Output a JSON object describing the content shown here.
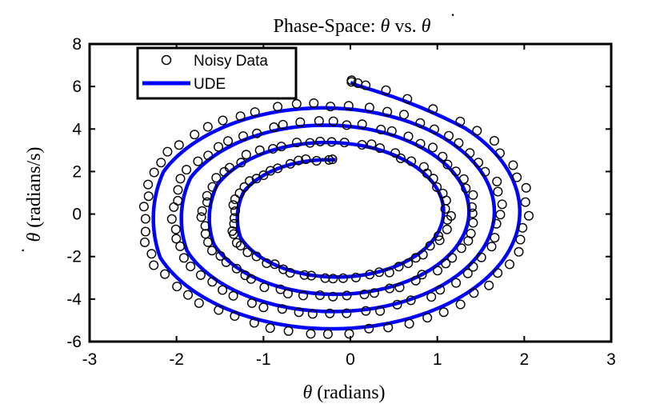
{
  "chart_data": {
    "type": "scatter",
    "title_prefix": "Phase-Space: ",
    "title_theta": "θ",
    "title_vs": " vs. ",
    "title_thetadot": "θ",
    "title_dot": "·",
    "xlabel_symbol": "θ",
    "xlabel_text": " (radians)",
    "ylabel_symbol": "θ",
    "ylabel_dot": "·",
    "ylabel_text": " (radians/s)",
    "xlim": [
      -3,
      3
    ],
    "ylim": [
      -6,
      8
    ],
    "xticks": [
      -3,
      -2,
      -1,
      0,
      1,
      2,
      3
    ],
    "yticks": [
      -6,
      -4,
      -2,
      0,
      2,
      4,
      6,
      8
    ],
    "grid": false,
    "legend_position": "top-left",
    "series": [
      {
        "name": "Noisy Data",
        "marker": "open-circle",
        "color": "#000000",
        "spiral": {
          "start_angle_deg": 88.3,
          "start_x": 0.0,
          "start_y": 6.25,
          "x_center_start": -0.3,
          "x_center_end": -0.2,
          "x_amp_start": 2.4,
          "x_amp_end": 1.1,
          "y_amp_start": 6.0,
          "y_amp_end": 2.6,
          "turns": 4.0,
          "count": 245,
          "noise": 0.08
        }
      },
      {
        "name": "UDE",
        "marker": "line",
        "color": "#0000ff",
        "spiral": {
          "start_angle_deg": 88.3,
          "start_x": 0.03,
          "start_y": 6.2,
          "x_center_start": -0.28,
          "x_center_end": -0.2,
          "x_amp_start": 2.3,
          "x_amp_end": 1.05,
          "y_amp_start": 5.8,
          "y_amp_end": 2.55,
          "turns": 4.0,
          "count": 600,
          "noise": 0
        }
      }
    ]
  }
}
